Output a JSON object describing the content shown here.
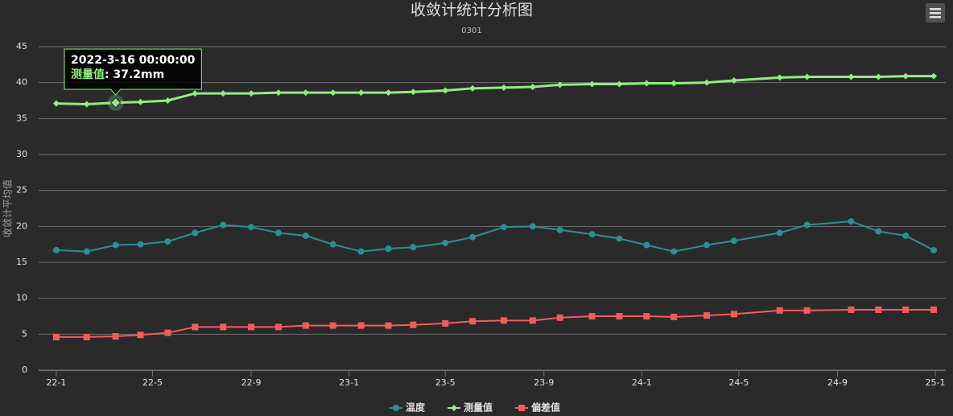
{
  "chart_data": {
    "type": "line",
    "title": "收敛计统计分析图",
    "subtitle": "0301",
    "y_label": "收敛计平均值",
    "x": [
      "2022-01-01",
      "2022-02-08",
      "2022-03-16",
      "2022-04-16",
      "2022-05-20",
      "2022-06-23",
      "2022-07-28",
      "2022-09-01",
      "2022-10-05",
      "2022-11-08",
      "2022-12-12",
      "2023-01-16",
      "2023-02-19",
      "2023-03-22",
      "2023-05-01",
      "2023-06-04",
      "2023-07-13",
      "2023-08-18",
      "2023-09-21",
      "2023-10-31",
      "2023-12-04",
      "2024-01-07",
      "2024-02-10",
      "2024-03-22",
      "2024-04-25",
      "2024-06-21",
      "2024-07-25",
      "2024-09-18",
      "2024-10-22",
      "2024-11-25",
      "2024-12-30"
    ],
    "series": [
      {
        "name": "温度",
        "color": "#2b908f",
        "marker": "circle",
        "values": [
          16.7,
          16.5,
          17.4,
          17.5,
          17.9,
          19.1,
          20.2,
          19.9,
          19.1,
          18.7,
          17.5,
          16.5,
          16.9,
          17.1,
          17.7,
          18.5,
          19.9,
          20.0,
          19.5,
          18.9,
          18.3,
          17.4,
          16.5,
          17.4,
          18.0,
          19.1,
          20.2,
          20.7,
          19.3,
          18.7,
          16.7
        ]
      },
      {
        "name": "测量值",
        "color": "#90ee7e",
        "marker": "diamond",
        "values": [
          37.1,
          37.0,
          37.2,
          37.3,
          37.5,
          38.5,
          38.5,
          38.5,
          38.6,
          38.6,
          38.6,
          38.6,
          38.6,
          38.7,
          38.9,
          39.2,
          39.3,
          39.4,
          39.7,
          39.8,
          39.8,
          39.9,
          39.9,
          40.0,
          40.3,
          40.7,
          40.8,
          40.8,
          40.8,
          40.9,
          40.9
        ]
      },
      {
        "name": "偏差值",
        "color": "#f45b5b",
        "marker": "square",
        "values": [
          4.6,
          4.6,
          4.7,
          4.9,
          5.2,
          6.0,
          6.0,
          6.0,
          6.0,
          6.2,
          6.2,
          6.2,
          6.2,
          6.3,
          6.5,
          6.8,
          6.9,
          6.9,
          7.3,
          7.5,
          7.5,
          7.5,
          7.4,
          7.6,
          7.8,
          8.3,
          8.3,
          8.4,
          8.4,
          8.4,
          8.4
        ]
      }
    ],
    "xlim": [
      "2021-12-10",
      "2025-01-14"
    ],
    "xticks": [
      {
        "value": "2022-01-01",
        "label": "22-1"
      },
      {
        "value": "2022-05-01",
        "label": "22-5"
      },
      {
        "value": "2022-09-01",
        "label": "22-9"
      },
      {
        "value": "2023-01-01",
        "label": "23-1"
      },
      {
        "value": "2023-05-01",
        "label": "23-5"
      },
      {
        "value": "2023-09-01",
        "label": "23-9"
      },
      {
        "value": "2024-01-01",
        "label": "24-1"
      },
      {
        "value": "2024-05-01",
        "label": "24-5"
      },
      {
        "value": "2024-09-01",
        "label": "24-9"
      },
      {
        "value": "2025-01-01",
        "label": "25-1"
      }
    ],
    "ylim": [
      0,
      45
    ],
    "yticks": [
      0,
      5,
      10,
      15,
      20,
      25,
      30,
      35,
      40,
      45
    ],
    "grid": true,
    "legend": "bottom",
    "tooltip": {
      "series": 1,
      "index": 2,
      "title": "2022-3-16 00:00:00",
      "value_text": ": 37.2mm"
    }
  }
}
